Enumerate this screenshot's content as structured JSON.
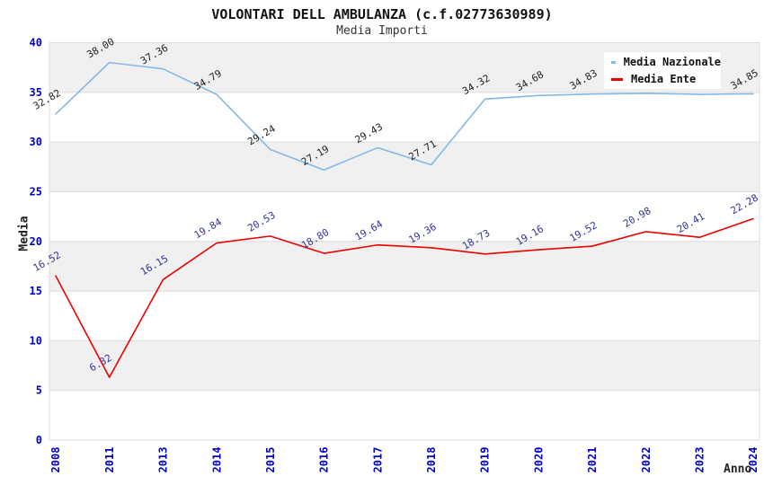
{
  "title": "VOLONTARI DELL AMBULANZA (c.f.02773630989)",
  "subtitle": "Media Importi",
  "y_axis": {
    "label": "Media",
    "ticks": [
      0,
      5,
      10,
      15,
      20,
      25,
      30,
      35,
      40
    ]
  },
  "x_axis": {
    "label": "Anno"
  },
  "legend": {
    "items": [
      {
        "label": "Media Nazionale",
        "color": "#86b7e6"
      },
      {
        "label": "Media Ente",
        "color": "#ee0000"
      }
    ]
  },
  "colors": {
    "tick": "#0000cc",
    "band": "#f0f0f0",
    "grid": "#dcdcdc",
    "border": "#cccccc",
    "title": "#111111"
  },
  "chart_data": {
    "type": "line",
    "title": "VOLONTARI DELL AMBULANZA (c.f.02773630989)",
    "subtitle": "Media Importi",
    "xlabel": "Anno",
    "ylabel": "Media",
    "ylim": [
      0,
      40
    ],
    "band_step": 5,
    "grid": "horizontal gridlines every 5 with alternating gray/white bands",
    "legend_position": "top-right",
    "categories": [
      "2008",
      "2011",
      "2013",
      "2014",
      "2015",
      "2016",
      "2017",
      "2018",
      "2019",
      "2020",
      "2021",
      "2022",
      "2023",
      "2024"
    ],
    "series": [
      {
        "name": "Media Nazionale",
        "color": "#86b7e6",
        "label_color": "#222222",
        "values": [
          32.82,
          38.0,
          37.36,
          34.79,
          29.24,
          27.19,
          29.43,
          27.71,
          34.32,
          34.68,
          34.83,
          34.9,
          34.8,
          34.85
        ],
        "labels": [
          "32.82",
          "38.00",
          "37.36",
          "34.79",
          "29.24",
          "27.19",
          "29.43",
          "27.71",
          "34.32",
          "34.68",
          "34.83",
          null,
          null,
          "34.85"
        ]
      },
      {
        "name": "Media Ente",
        "color": "#ee0000",
        "label_color": "#333399",
        "values": [
          16.52,
          6.32,
          16.15,
          19.84,
          20.53,
          18.8,
          19.64,
          19.36,
          18.73,
          19.16,
          19.52,
          20.98,
          20.41,
          22.28
        ],
        "labels": [
          "16.52",
          "6.32",
          "16.15",
          "19.84",
          "20.53",
          "18.80",
          "19.64",
          "19.36",
          "18.73",
          "19.16",
          "19.52",
          "20.98",
          "20.41",
          "22.28"
        ]
      }
    ]
  }
}
